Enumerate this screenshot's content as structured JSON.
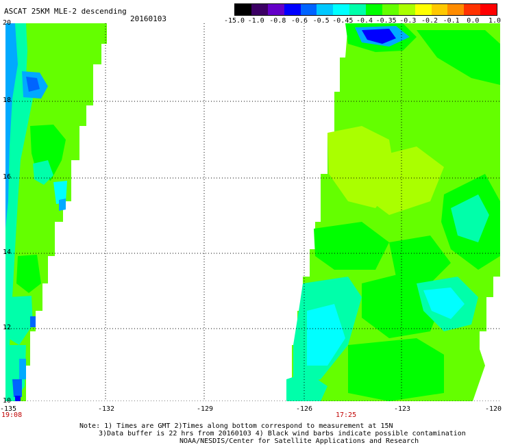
{
  "header": {
    "title": "ASCAT 25KM MLE-2 descending",
    "date": "20160103"
  },
  "colorbar": {
    "labels": [
      "-15.0",
      "-1.0",
      "-0.8",
      "-0.6",
      "-0.5",
      "-0.45",
      "-0.4",
      "-0.35",
      "-0.3",
      "-0.2",
      "-0.1",
      "0.0",
      "1.0"
    ],
    "colors": [
      "#000000",
      "#3c0064",
      "#6400c8",
      "#0000ff",
      "#0064ff",
      "#00c8ff",
      "#00ffff",
      "#00ffaa",
      "#00ff00",
      "#64ff00",
      "#aaff00",
      "#ffff00",
      "#ffc800",
      "#ff8c00",
      "#ff3200",
      "#ff0000"
    ]
  },
  "axes": {
    "lat_labels": [
      "20",
      "18",
      "16",
      "14",
      "12",
      "10"
    ],
    "lon_labels": [
      "-135",
      "-132",
      "-129",
      "-126",
      "-123",
      "-120"
    ]
  },
  "times": {
    "left": "19:08",
    "right": "17:25"
  },
  "notes": {
    "line1": "Note: 1) Times are GMT 2)Times along bottom correspond to measurement at 15N",
    "line2": "3)Data buffer is 22 hrs from 20160103 4) Black wind barbs indicate possible contamination",
    "line3": "NOAA/NESDIS/Center for Satellite Applications and Research"
  },
  "palette": {
    "blue": "#0000ff",
    "deep_blue": "#0032ff",
    "sky": "#00aaff",
    "cyan": "#00ffff",
    "aqua": "#00ffc8",
    "green": "#00ff00",
    "lime": "#64ff00",
    "yellowgreen": "#aaff00"
  }
}
